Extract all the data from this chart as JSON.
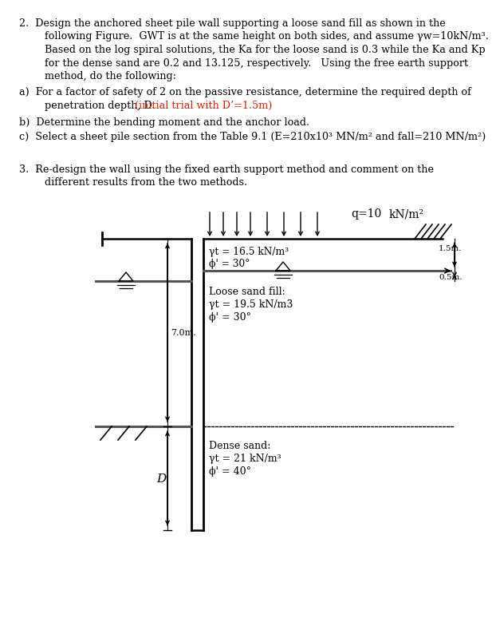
{
  "bg_color": "#ffffff",
  "line2_1": "2.  Design the anchored sheet pile wall supporting a loose sand fill as shown in the",
  "line2_2": "    following Figure.  GWT is at the same height on both sides, and assume γw=10kN/m³.",
  "line2_3": "    Based on the log spiral solutions, the Ka for the loose sand is 0.3 while the Ka and Kp",
  "line2_4": "    for the dense sand are 0.2 and 13.125, respectively.   Using the free earth support",
  "line2_5": "    method, do the following:",
  "line_a1": "a)  For a factor of safety of 2 on the passive resistance, determine the required depth of",
  "line_a2_black": "    penetration depth, D. ",
  "line_a2_orange": "(initial trial with D’=1.5m)",
  "line_b": "b)  Determine the bending moment and the anchor load.",
  "line_c": "c)  Select a sheet pile section from the Table 9.1 (E=210x10³ MN/m² and fall=210 MN/m²)",
  "line3_1": "3.  Re-design the wall using the fixed earth support method and comment on the",
  "line3_2": "    different results from the two methods.",
  "q_label": "q=10",
  "q_unit": "kN/m²",
  "label_top1": "γt = 16.5 kN/m³",
  "label_top2": "ϕ' = 30°",
  "label_loose1": "Loose sand fill:",
  "label_loose2": "γt = 19.5 kN/m3",
  "label_loose3": "ϕ' = 30°",
  "label_dense1": "Dense sand:",
  "label_dense2": "γt = 21 kN/m³",
  "label_dense3": "ϕ' = 40°",
  "dim_7m": "7.0m.",
  "dim_15m": "1.5m.",
  "dim_05m": "0.5m.",
  "dim_D": "D",
  "fs": 9.2,
  "lh": 16.5
}
